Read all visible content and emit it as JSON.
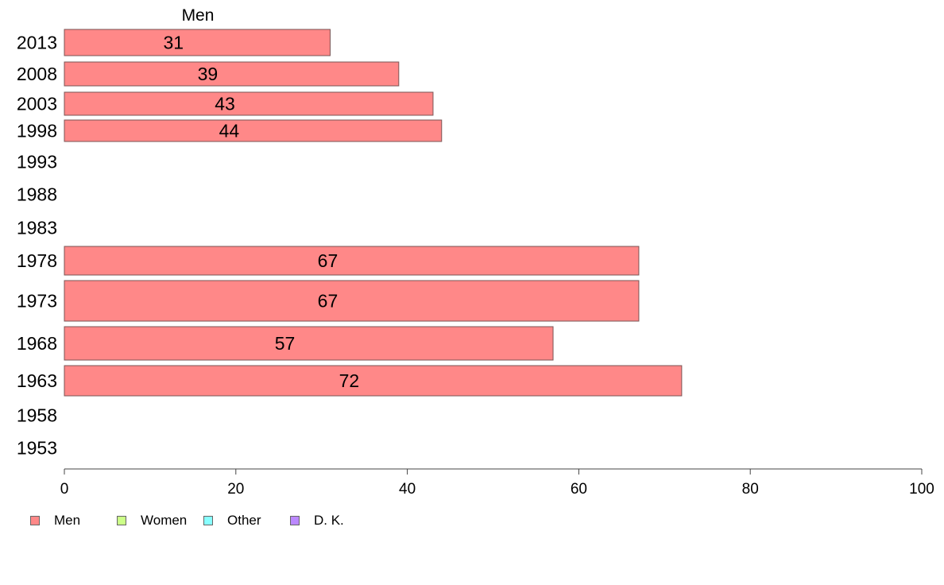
{
  "chart_data": {
    "type": "bar",
    "orientation": "horizontal",
    "title": "Men",
    "categories": [
      "2013",
      "2008",
      "2003",
      "1998",
      "1993",
      "1988",
      "1983",
      "1978",
      "1973",
      "1968",
      "1963",
      "1958",
      "1953"
    ],
    "series": [
      {
        "name": "Men",
        "values": [
          31,
          39,
          43,
          44,
          null,
          null,
          null,
          67,
          67,
          57,
          72,
          null,
          null
        ],
        "color": "#ff8888"
      }
    ],
    "data_labels": [
      "31",
      "39",
      "43",
      "44",
      "",
      "",
      "",
      "67",
      "67",
      "57",
      "72",
      "",
      ""
    ],
    "xlim": [
      0,
      100
    ],
    "xticks": [
      0,
      20,
      40,
      60,
      80,
      100
    ],
    "xlabel": "",
    "ylabel": "",
    "grid": false,
    "legend_position": "bottom-left",
    "legend": [
      {
        "label": "Men",
        "color": "#ff8888"
      },
      {
        "label": "Women",
        "color": "#ccff88"
      },
      {
        "label": "Other",
        "color": "#88ffff"
      },
      {
        "label": "D. K.",
        "color": "#bb88ff"
      }
    ]
  }
}
